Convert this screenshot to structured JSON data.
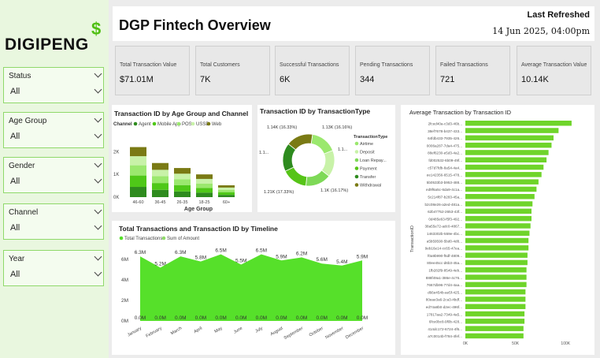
{
  "brand": {
    "name": "DIGIPENG",
    "symbol": "$"
  },
  "header": {
    "title": "DGP Fintech Overview",
    "last_refreshed_label": "Last Refreshed",
    "last_refreshed_value": "14 Jun 2025, 04:00pm"
  },
  "slicers": [
    {
      "title": "Status",
      "value": "All"
    },
    {
      "title": "Age Group",
      "value": "All"
    },
    {
      "title": "Gender",
      "value": "All"
    },
    {
      "title": "Channel",
      "value": "All"
    },
    {
      "title": "Year",
      "value": "All"
    }
  ],
  "kpis": [
    {
      "label": "Total Transaction Value",
      "value": "$71.01M"
    },
    {
      "label": "Total Customers",
      "value": "7K"
    },
    {
      "label": "Successful Transactions",
      "value": "6K"
    },
    {
      "label": "Pending Transactions",
      "value": "344"
    },
    {
      "label": "Failed Transactions",
      "value": "721"
    },
    {
      "label": "Average Transaction Value",
      "value": "10.14K"
    }
  ],
  "colors": {
    "accent": "#56c417",
    "c_agent": "#2e8b1e",
    "c_mobile": "#4fc818",
    "c_pos": "#9be86e",
    "c_ussd": "#c8f2a8",
    "c_web": "#7a7a14"
  },
  "chart_data": [
    {
      "type": "bar",
      "stacked": true,
      "title": "Transaction ID by Age Group and Channel",
      "legend_title": "Channel",
      "xlabel": "Age Group",
      "ylabel": "",
      "ylim": [
        0,
        2.6
      ],
      "yticks": [
        "0K",
        "1K",
        "2K"
      ],
      "categories": [
        "46-60",
        "36-45",
        "26-35",
        "18-25",
        "60+"
      ],
      "series": [
        {
          "name": "Agent",
          "color": "#2e8b1e",
          "values": [
            0.45,
            0.32,
            0.25,
            0.2,
            0.1
          ]
        },
        {
          "name": "Mobile App",
          "color": "#4fc818",
          "values": [
            0.5,
            0.3,
            0.28,
            0.2,
            0.12
          ]
        },
        {
          "name": "POS",
          "color": "#9be86e",
          "values": [
            0.45,
            0.3,
            0.25,
            0.2,
            0.1
          ]
        },
        {
          "name": "USSD",
          "color": "#c8f2a8",
          "values": [
            0.4,
            0.28,
            0.25,
            0.2,
            0.1
          ]
        },
        {
          "name": "Web",
          "color": "#7a7a14",
          "values": [
            0.4,
            0.3,
            0.25,
            0.2,
            0.1
          ]
        }
      ],
      "legend_position": "top"
    },
    {
      "type": "pie",
      "donut": true,
      "title": "Transaction ID by TransactionType",
      "legend_title": "TransactionType",
      "legend_position": "right",
      "slices": [
        {
          "name": "Airtime",
          "value": 1.13,
          "color": "#9be86e"
        },
        {
          "name": "Deposit",
          "value": 1.14,
          "color": "#c8f2a8"
        },
        {
          "name": "Loan Repay...",
          "value": 1.1,
          "color": "#7ed957"
        },
        {
          "name": "Payment",
          "value": 1.11,
          "color": "#56c417"
        },
        {
          "name": "Transfer",
          "value": 1.21,
          "color": "#2e8b1e"
        },
        {
          "name": "Withdrawal",
          "value": 1.14,
          "color": "#7a7a14"
        }
      ],
      "labels": [
        "1.13K (16.16%)",
        "1.1...",
        "1.1K (16.17%)",
        "1.21K (17.33%)",
        "1.1...",
        "1.14K (16.33%)"
      ]
    },
    {
      "type": "area",
      "title": "Total Transactions and Transaction ID by Timeline",
      "legend": [
        "Total Transactions",
        "Sum of Amount"
      ],
      "legend_position": "top-left",
      "ylim": [
        0,
        7
      ],
      "yticks": [
        "0M",
        "2M",
        "4M",
        "6M"
      ],
      "x": [
        "January",
        "February",
        "March",
        "April",
        "May",
        "June",
        "July",
        "August",
        "September",
        "October",
        "November",
        "December"
      ],
      "values": [
        6.3,
        5.2,
        6.3,
        5.8,
        6.5,
        5.5,
        6.5,
        5.9,
        6.2,
        5.6,
        5.4,
        5.9
      ],
      "value_labels": [
        "6.3M",
        "5.2M",
        "6.3M",
        "5.8M",
        "6.5M",
        "5.5M",
        "6.5M",
        "5.9M",
        "6.2M",
        "5.6M",
        "5.4M",
        "5.9M"
      ],
      "baseline_labels": [
        "0.0M",
        "0.0M",
        "0.0M",
        "0.0M",
        "0.0M",
        "0.0M",
        "0.0M",
        "0.0M",
        "0.0M",
        "0.0M",
        "0.0M",
        "0.0M"
      ],
      "color": "#56e02a"
    },
    {
      "type": "bar",
      "orientation": "horizontal",
      "title": "Average Transaction by Transaction ID",
      "ylabel": "TransactionID",
      "xlim": [
        0,
        110
      ],
      "xticks": [
        "0K",
        "50K",
        "100K"
      ],
      "categories": [
        "2fced40a-c3d3-46b...",
        "38ef7678-b437-433...",
        "64fdb433-7935-426...",
        "0006a287-7da4-475...",
        "88ef6230-e5d3-4a2...",
        "fd002532-6b09-49f...",
        "c57d7fdb-8a54-4a4...",
        "ee142356-6515-478...",
        "5b0533b3-b953-488...",
        "ed9f6a5c-6da9-4c1a...",
        "5c214f87-b283-45a...",
        "b2c08e26-a2ed-481a...",
        "62b47752-2653-43f...",
        "0d485e63-f5f3-492...",
        "38a55e72-adc0-4867...",
        "1463302b-559e-4bc...",
        "a5b59590-5bd0-4d8...",
        "9eb16e14-cc65-47ea...",
        "f0a9b990-f5df-4809...",
        "80ee45cc-d6b3-45a...",
        "1fb282f9-8549-4eb...",
        "888f49a1-386e-4c76...",
        "7667db96-77d4-4aa...",
        "d66e454b-ae5f-425...",
        "80eae3a6-2ca3-4bdf...",
        "ed74a8b0-d2ec-496f...",
        "17817aa2-7349-4a5...",
        "6fce0bc8-9f0b-428...",
        "414dc172-6724-4f6...",
        "a7c0014b-f784-4fef..."
      ],
      "values": [
        106,
        93,
        88,
        86,
        83,
        81,
        78,
        76,
        73,
        71,
        69,
        67,
        66,
        66,
        65,
        64,
        63,
        63,
        62,
        62,
        61,
        61,
        61,
        60,
        60,
        60,
        59,
        59,
        58,
        58
      ],
      "color": "#6fd42a"
    }
  ]
}
